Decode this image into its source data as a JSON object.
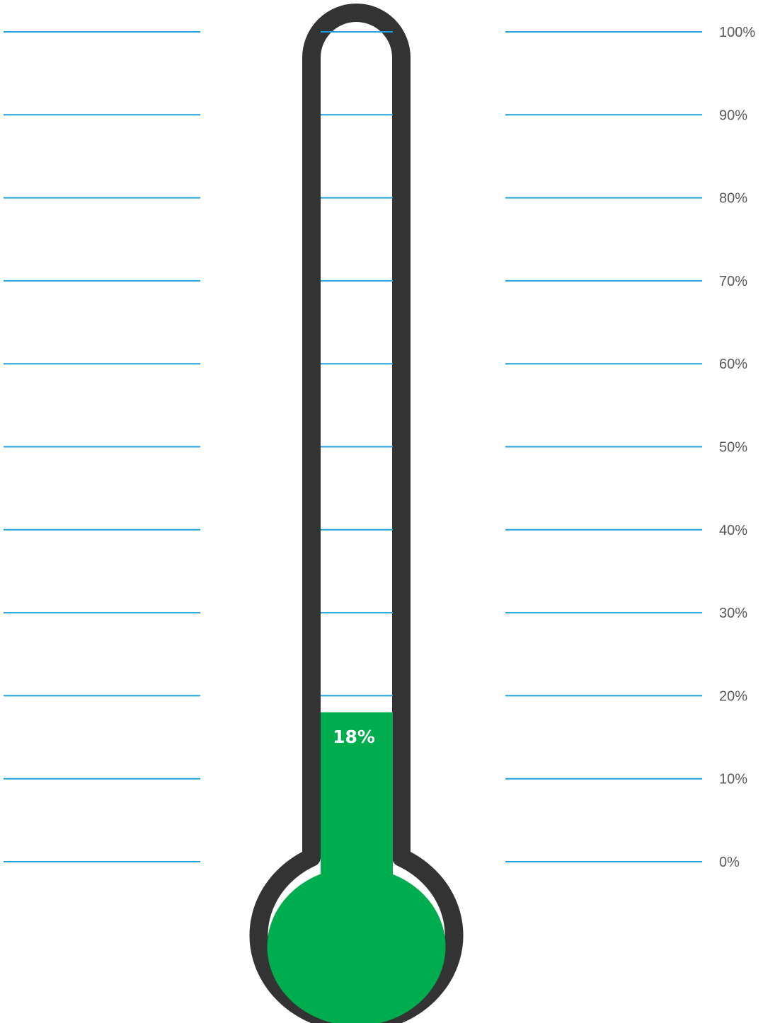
{
  "chart_data": {
    "type": "thermometer",
    "value": 18,
    "value_label": "18%",
    "ylim": [
      0,
      100
    ],
    "ticks": [
      {
        "value": 100,
        "label": "100%"
      },
      {
        "value": 90,
        "label": "90%"
      },
      {
        "value": 80,
        "label": "80%"
      },
      {
        "value": 70,
        "label": "70%"
      },
      {
        "value": 60,
        "label": "60%"
      },
      {
        "value": 50,
        "label": "50%"
      },
      {
        "value": 40,
        "label": "40%"
      },
      {
        "value": 30,
        "label": "30%"
      },
      {
        "value": 20,
        "label": "20%"
      },
      {
        "value": 10,
        "label": "10%"
      },
      {
        "value": 0,
        "label": "0%"
      }
    ],
    "gridlines": true,
    "colors": {
      "fill": "#00ad4e",
      "outline": "#333333",
      "gridline": "#1ea0dc",
      "tick_label": "#595959",
      "value_label": "#ffffff"
    }
  }
}
